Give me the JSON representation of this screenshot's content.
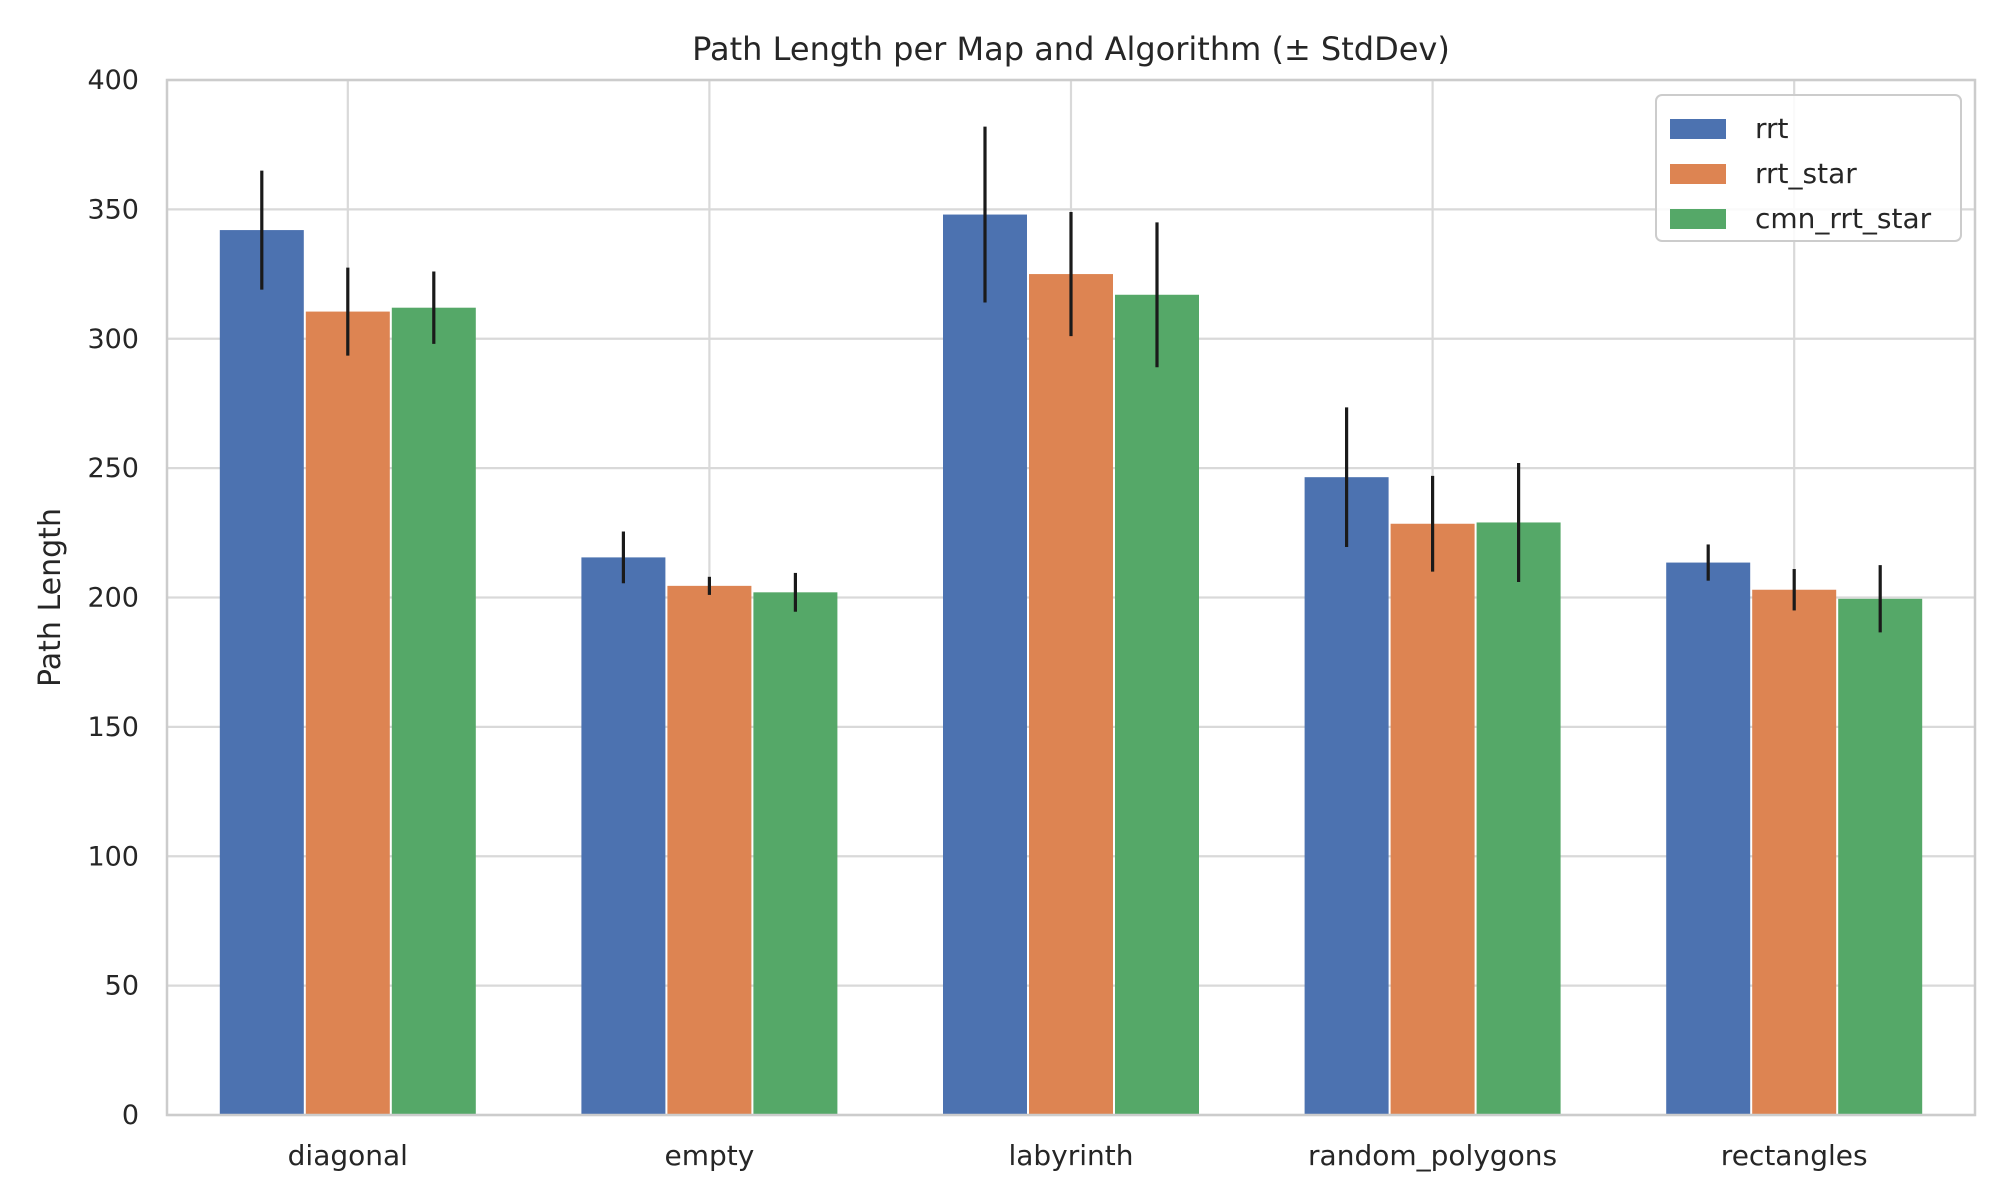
{
  "chart_data": {
    "type": "bar",
    "title": "Path Length per Map and Algorithm (± StdDev)",
    "xlabel": "",
    "ylabel": "Path Length",
    "ylim": [
      0,
      400
    ],
    "yticks": [
      0,
      50,
      100,
      150,
      200,
      250,
      300,
      350,
      400
    ],
    "grid": true,
    "legend_position": "top-right",
    "categories": [
      "diagonal",
      "empty",
      "labyrinth",
      "random_polygons",
      "rectangles"
    ],
    "series": [
      {
        "name": "rrt",
        "color": "#4C72B0",
        "values": [
          342,
          215.5,
          348,
          246.5,
          213.5
        ],
        "errors": [
          23,
          10,
          34,
          27,
          7
        ]
      },
      {
        "name": "rrt_star",
        "color": "#DD8452",
        "values": [
          310.5,
          204.5,
          325,
          228.5,
          203
        ],
        "errors": [
          17,
          3.5,
          24,
          18.5,
          8
        ]
      },
      {
        "name": "cmn_rrt_star",
        "color": "#55A868",
        "values": [
          312,
          202,
          317,
          229,
          199.5
        ],
        "errors": [
          14,
          7.5,
          28,
          23,
          13
        ]
      }
    ]
  }
}
